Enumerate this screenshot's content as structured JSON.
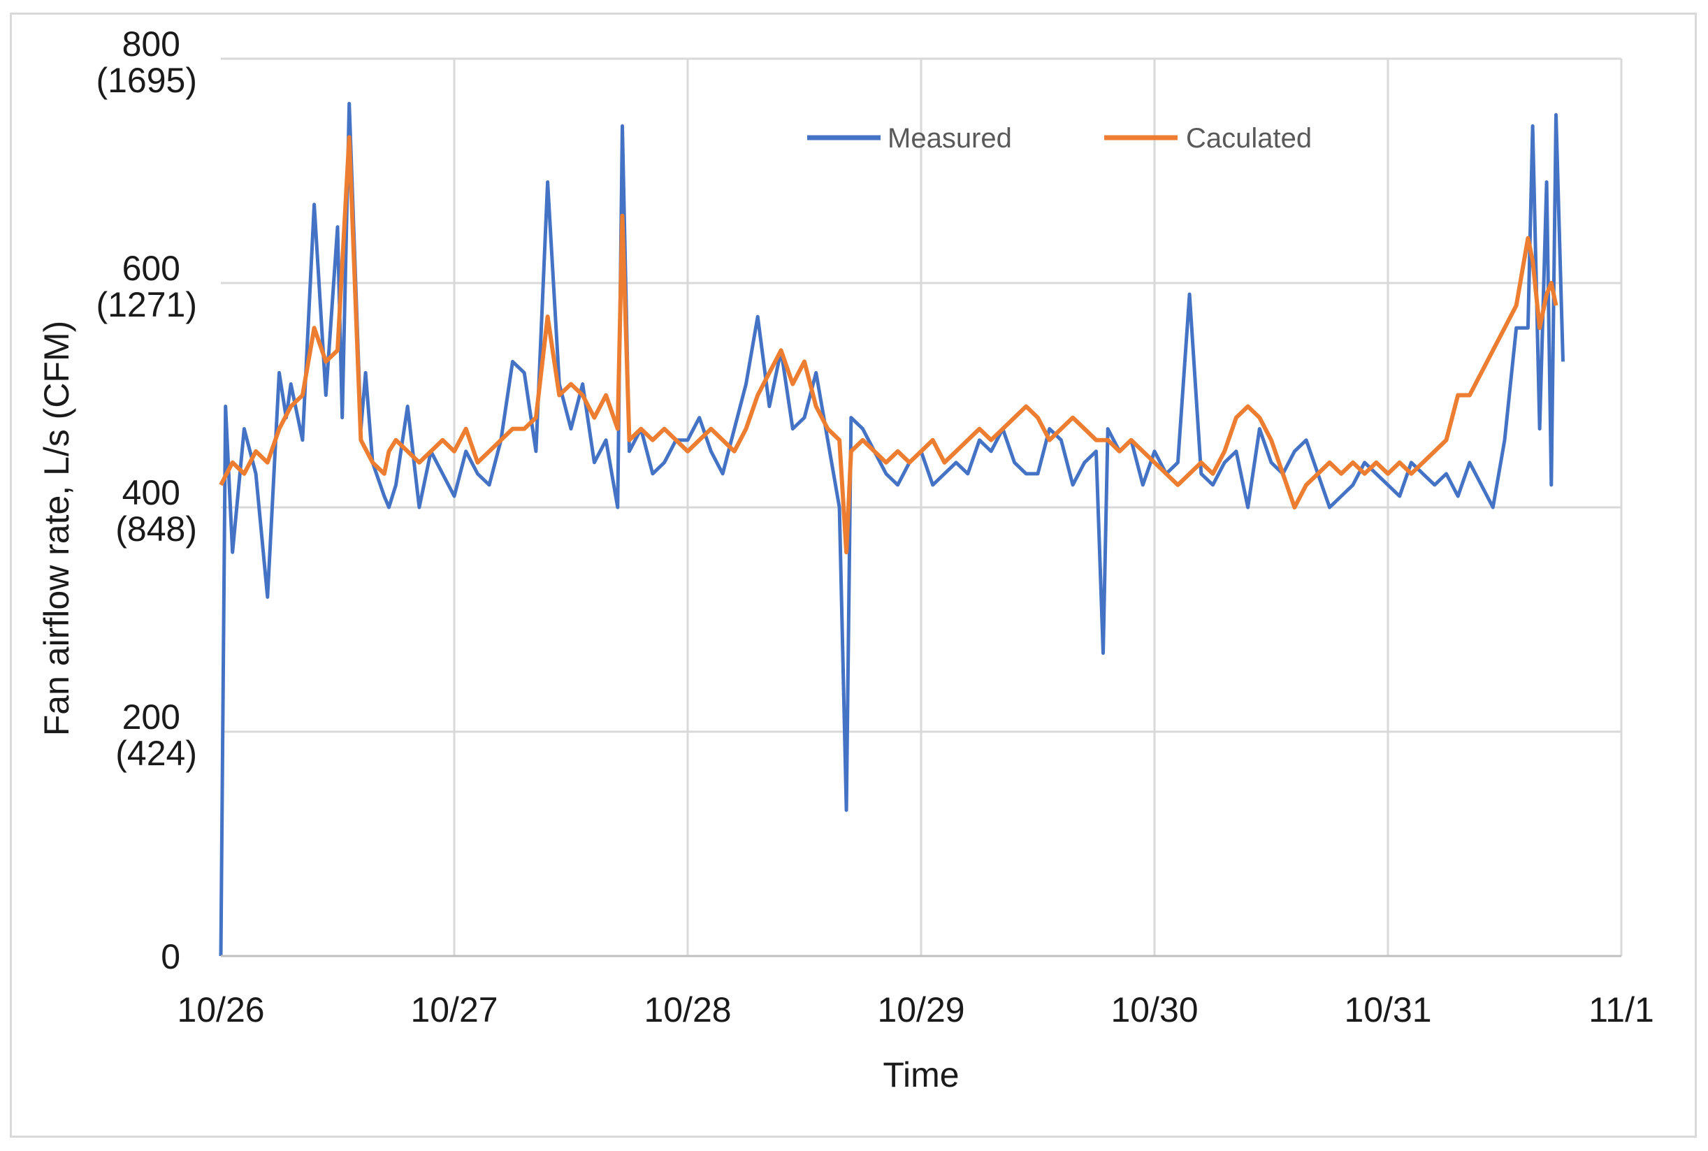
{
  "chart_data": {
    "type": "line",
    "title": "",
    "xlabel": "Time",
    "ylabel": "Fan airflow rate, L/s (CFM)",
    "x_ticks": [
      "10/26",
      "10/27",
      "10/28",
      "10/29",
      "10/30",
      "10/31",
      "11/1"
    ],
    "x_range": [
      0,
      6
    ],
    "ylim": [
      0,
      800
    ],
    "y_ticks": [
      {
        "value": 0,
        "label": "0",
        "sublabel": ""
      },
      {
        "value": 200,
        "label": "200",
        "sublabel": "(424)"
      },
      {
        "value": 400,
        "label": "400",
        "sublabel": "(848)"
      },
      {
        "value": 600,
        "label": "600",
        "sublabel": "(1271)"
      },
      {
        "value": 800,
        "label": "800",
        "sublabel": "(1695)"
      }
    ],
    "grid": true,
    "legend_position": "top-right",
    "series": [
      {
        "name": "Measured",
        "color": "#4472C4",
        "x": [
          0,
          0.02,
          0.05,
          0.1,
          0.15,
          0.2,
          0.25,
          0.28,
          0.3,
          0.35,
          0.4,
          0.45,
          0.5,
          0.52,
          0.55,
          0.6,
          0.62,
          0.65,
          0.7,
          0.72,
          0.75,
          0.8,
          0.85,
          0.9,
          0.95,
          1.0,
          1.05,
          1.1,
          1.15,
          1.2,
          1.25,
          1.3,
          1.35,
          1.4,
          1.45,
          1.5,
          1.55,
          1.6,
          1.65,
          1.7,
          1.72,
          1.75,
          1.8,
          1.85,
          1.9,
          1.95,
          2.0,
          2.05,
          2.1,
          2.15,
          2.2,
          2.25,
          2.3,
          2.35,
          2.4,
          2.45,
          2.5,
          2.55,
          2.6,
          2.65,
          2.68,
          2.7,
          2.75,
          2.8,
          2.85,
          2.9,
          2.95,
          3.0,
          3.05,
          3.1,
          3.15,
          3.2,
          3.25,
          3.3,
          3.35,
          3.4,
          3.45,
          3.5,
          3.55,
          3.6,
          3.65,
          3.7,
          3.75,
          3.78,
          3.8,
          3.85,
          3.9,
          3.95,
          4.0,
          4.05,
          4.1,
          4.15,
          4.2,
          4.25,
          4.3,
          4.35,
          4.4,
          4.45,
          4.5,
          4.55,
          4.6,
          4.65,
          4.7,
          4.75,
          4.8,
          4.85,
          4.9,
          4.95,
          5.0,
          5.05,
          5.1,
          5.15,
          5.2,
          5.25,
          5.3,
          5.35,
          5.4,
          5.45,
          5.5,
          5.55,
          5.6,
          5.62,
          5.65,
          5.68,
          5.7,
          5.72,
          5.75
        ],
        "y": [
          0,
          490,
          360,
          470,
          430,
          320,
          520,
          480,
          510,
          460,
          670,
          500,
          650,
          480,
          760,
          470,
          520,
          440,
          410,
          400,
          420,
          490,
          400,
          450,
          430,
          410,
          450,
          430,
          420,
          460,
          530,
          520,
          450,
          690,
          510,
          470,
          510,
          440,
          460,
          400,
          740,
          450,
          470,
          430,
          440,
          460,
          460,
          480,
          450,
          430,
          470,
          510,
          570,
          490,
          540,
          470,
          480,
          520,
          460,
          400,
          130,
          480,
          470,
          450,
          430,
          420,
          440,
          450,
          420,
          430,
          440,
          430,
          460,
          450,
          470,
          440,
          430,
          430,
          470,
          460,
          420,
          440,
          450,
          270,
          470,
          450,
          460,
          420,
          450,
          430,
          440,
          590,
          430,
          420,
          440,
          450,
          400,
          470,
          440,
          430,
          450,
          460,
          430,
          400,
          410,
          420,
          440,
          430,
          420,
          410,
          440,
          430,
          420,
          430,
          410,
          440,
          420,
          400,
          460,
          560,
          560,
          740,
          470,
          690,
          420,
          750,
          530
        ]
      },
      {
        "name": "Caculated",
        "color": "#ED7D31",
        "x": [
          0,
          0.05,
          0.1,
          0.15,
          0.2,
          0.25,
          0.3,
          0.35,
          0.4,
          0.45,
          0.5,
          0.55,
          0.6,
          0.65,
          0.7,
          0.72,
          0.75,
          0.8,
          0.85,
          0.9,
          0.95,
          1.0,
          1.05,
          1.1,
          1.15,
          1.2,
          1.25,
          1.3,
          1.35,
          1.4,
          1.45,
          1.5,
          1.55,
          1.6,
          1.65,
          1.7,
          1.72,
          1.75,
          1.8,
          1.85,
          1.9,
          1.95,
          2.0,
          2.05,
          2.1,
          2.15,
          2.2,
          2.25,
          2.3,
          2.35,
          2.4,
          2.45,
          2.5,
          2.55,
          2.6,
          2.65,
          2.68,
          2.7,
          2.75,
          2.8,
          2.85,
          2.9,
          2.95,
          3.0,
          3.05,
          3.1,
          3.15,
          3.2,
          3.25,
          3.3,
          3.35,
          3.4,
          3.45,
          3.5,
          3.55,
          3.6,
          3.65,
          3.7,
          3.75,
          3.8,
          3.85,
          3.9,
          3.95,
          4.0,
          4.05,
          4.1,
          4.15,
          4.2,
          4.25,
          4.3,
          4.35,
          4.4,
          4.45,
          4.5,
          4.55,
          4.6,
          4.65,
          4.7,
          4.75,
          4.8,
          4.85,
          4.9,
          4.95,
          5.0,
          5.05,
          5.1,
          5.15,
          5.2,
          5.25,
          5.3,
          5.35,
          5.4,
          5.45,
          5.5,
          5.55,
          5.6,
          5.62,
          5.65,
          5.68,
          5.7,
          5.72
        ],
        "y": [
          420,
          440,
          430,
          450,
          440,
          470,
          490,
          500,
          560,
          530,
          540,
          730,
          460,
          440,
          430,
          450,
          460,
          450,
          440,
          450,
          460,
          450,
          470,
          440,
          450,
          460,
          470,
          470,
          480,
          570,
          500,
          510,
          500,
          480,
          500,
          470,
          660,
          460,
          470,
          460,
          470,
          460,
          450,
          460,
          470,
          460,
          450,
          470,
          500,
          520,
          540,
          510,
          530,
          490,
          470,
          460,
          360,
          450,
          460,
          450,
          440,
          450,
          440,
          450,
          460,
          440,
          450,
          460,
          470,
          460,
          470,
          480,
          490,
          480,
          460,
          470,
          480,
          470,
          460,
          460,
          450,
          460,
          450,
          440,
          430,
          420,
          430,
          440,
          430,
          450,
          480,
          490,
          480,
          460,
          430,
          400,
          420,
          430,
          440,
          430,
          440,
          430,
          440,
          430,
          440,
          430,
          440,
          450,
          460,
          500,
          500,
          520,
          540,
          560,
          580,
          640,
          620,
          560,
          590,
          600,
          580
        ]
      }
    ]
  }
}
